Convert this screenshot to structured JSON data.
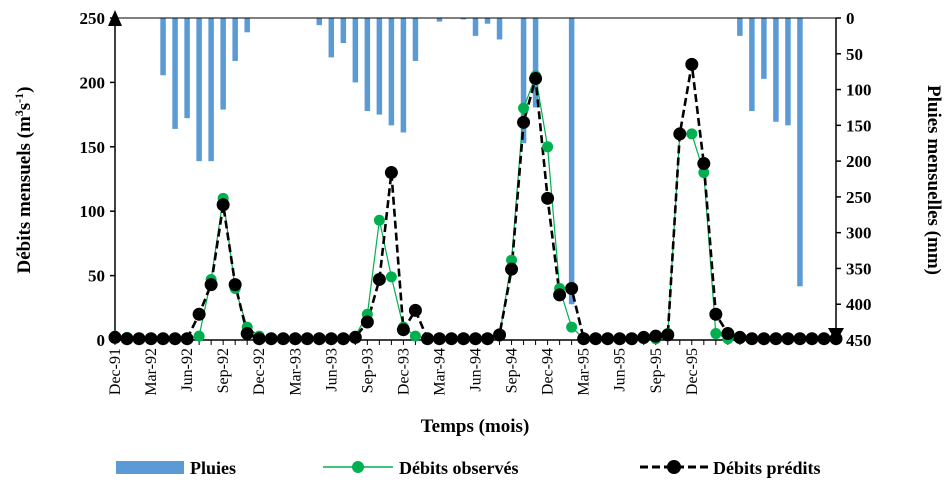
{
  "chart_data": {
    "type": "bar+line",
    "title": "",
    "xlabel": "Temps (mois)",
    "ylabel_left": "Débits mensuels (m³s⁻¹)",
    "ylabel_right": "Pluies mensuelles (mm)",
    "ylabel_left_parts": {
      "base": "Débits mensuels (m",
      "sup1": "3",
      "mid": "s",
      "sup2": "-1",
      "end": ")"
    },
    "ylim_left": [
      0,
      250
    ],
    "ylim_right": [
      0,
      450
    ],
    "right_axis_inverted": true,
    "y_ticks_left": [
      "0",
      "50",
      "100",
      "150",
      "200",
      "250"
    ],
    "y_ticks_right": [
      "0",
      "50",
      "100",
      "150",
      "200",
      "250",
      "300",
      "350",
      "400",
      "450"
    ],
    "x_tick_labels": [
      "Dec-91",
      "Mar-92",
      "Jun-92",
      "Sep-92",
      "Dec-92",
      "Mar-93",
      "Jun-93",
      "Sep-93",
      "Dec-93",
      "Mar-94",
      "Jun-94",
      "Sep-94",
      "Dec-94",
      "Mar-95",
      "Jun-95",
      "Sep-95",
      "Dec-95"
    ],
    "legend_position": "bottom",
    "series": [
      {
        "name": "Pluies",
        "kind": "bar",
        "axis": "right",
        "color": "#5b9bd5",
        "values": [
          0,
          0,
          0,
          0,
          80,
          155,
          140,
          200,
          200,
          128,
          60,
          20,
          0,
          0,
          0,
          0,
          0,
          10,
          55,
          35,
          90,
          130,
          135,
          150,
          160,
          60,
          0,
          5,
          0,
          2,
          25,
          8,
          30,
          0,
          175,
          125,
          0,
          0,
          400,
          0,
          0,
          0,
          0,
          0,
          0,
          0,
          0,
          0,
          0,
          0,
          0,
          0,
          25,
          130,
          85,
          145,
          150,
          375,
          0,
          0,
          0
        ]
      },
      {
        "name": "Débits observés",
        "kind": "line",
        "axis": "left",
        "color": "#00b050",
        "values": [
          3,
          2,
          1,
          1,
          1,
          1,
          1,
          3,
          47,
          110,
          40,
          10,
          3,
          1,
          1,
          1,
          1,
          1,
          1,
          1,
          3,
          20,
          93,
          49,
          10,
          3,
          1,
          1,
          1,
          1,
          1,
          1,
          3,
          62,
          180,
          205,
          150,
          40,
          10,
          1,
          1,
          1,
          1,
          1,
          1,
          1,
          5,
          160,
          160,
          130,
          5,
          1,
          1,
          1,
          1,
          1,
          1,
          1,
          1,
          1,
          1
        ]
      },
      {
        "name": "Débits prédits",
        "kind": "line",
        "axis": "left",
        "color": "#000000",
        "values": [
          2,
          1,
          1,
          1,
          1,
          1,
          1,
          20,
          43,
          105,
          43,
          5,
          1,
          1,
          1,
          1,
          1,
          1,
          1,
          1,
          2,
          14,
          47,
          130,
          8,
          23,
          1,
          1,
          1,
          1,
          1,
          1,
          4,
          55,
          169,
          203,
          110,
          35,
          40,
          1,
          1,
          1,
          1,
          1,
          2,
          3,
          4,
          160,
          214,
          137,
          20,
          5,
          2,
          1,
          1,
          1,
          1,
          1,
          1,
          1,
          1
        ]
      }
    ]
  }
}
